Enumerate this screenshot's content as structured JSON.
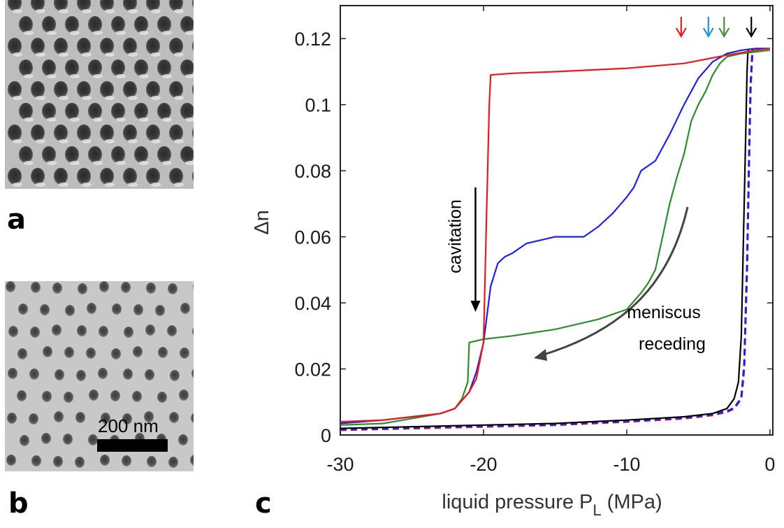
{
  "panels": {
    "a": "a",
    "b": "b",
    "c": "c"
  },
  "scale_bar": {
    "label": "200 nm"
  },
  "colors": {
    "red": "#e8191c",
    "blue": "#1f21e0",
    "green": "#2e8b2e",
    "black": "#000000",
    "arrow_blue": "#1f8fd6",
    "arrow_green": "#4f8a3a",
    "meniscus_arrow": "#444444"
  },
  "chart_data": {
    "type": "line",
    "xlabel": "liquid pressure P_L  (MPa)",
    "ylabel": "Δn",
    "xlim": [
      -30,
      0.2
    ],
    "ylim": [
      0,
      0.13
    ],
    "x_ticks": [
      -30,
      -20,
      -10,
      0
    ],
    "x_tick_labels": [
      "-30",
      "-20",
      "-10",
      "0"
    ],
    "y_ticks": [
      0,
      0.02,
      0.04,
      0.06,
      0.08,
      0.1,
      0.12
    ],
    "y_tick_labels": [
      "0",
      "0.02",
      "0.04",
      "0.06",
      "0.08",
      "0.1",
      "0.12"
    ],
    "grid": false,
    "annotations": [
      {
        "text": "cavitation",
        "x": -21,
        "y": 0.05,
        "arrow": "down"
      },
      {
        "text": "meniscus",
        "x": -6,
        "y": 0.04
      },
      {
        "text": "receding",
        "x": -6,
        "y": 0.029
      }
    ],
    "series": [
      {
        "color": "red",
        "style": "solid",
        "x": [
          -30,
          -27,
          -25,
          -23,
          -22,
          -21.5,
          -21,
          -20.5,
          -20,
          -19.8,
          -19.6,
          -19.5,
          -18,
          -15,
          -10,
          -6,
          -3,
          -1,
          0
        ],
        "y": [
          0.004,
          0.0045,
          0.0055,
          0.0065,
          0.008,
          0.0105,
          0.013,
          0.017,
          0.028,
          0.065,
          0.1,
          0.109,
          0.1095,
          0.11,
          0.111,
          0.1125,
          0.115,
          0.1165,
          0.117
        ]
      },
      {
        "color": "blue",
        "style": "solid",
        "x": [
          -30,
          -27,
          -25,
          -23,
          -22,
          -21.5,
          -21,
          -20.5,
          -20,
          -19.5,
          -19,
          -18.5,
          -18,
          -17,
          -16,
          -15,
          -14,
          -13,
          -12,
          -11,
          -10,
          -9.5,
          -9,
          -8,
          -7,
          -6,
          -5,
          -4,
          -3,
          -2,
          -1,
          0
        ],
        "y": [
          0.0035,
          0.0045,
          0.0055,
          0.0065,
          0.008,
          0.0105,
          0.013,
          0.019,
          0.028,
          0.045,
          0.052,
          0.054,
          0.055,
          0.058,
          0.059,
          0.06,
          0.06,
          0.06,
          0.063,
          0.067,
          0.072,
          0.075,
          0.08,
          0.083,
          0.091,
          0.1,
          0.108,
          0.113,
          0.1155,
          0.1165,
          0.117,
          0.117
        ]
      },
      {
        "color": "green",
        "style": "solid",
        "x": [
          -30,
          -27,
          -25,
          -23,
          -22,
          -21.5,
          -21.1,
          -21,
          -20,
          -18,
          -15,
          -12,
          -10,
          -9,
          -8.5,
          -8,
          -7.5,
          -7,
          -6.5,
          -6,
          -5.5,
          -5,
          -4.5,
          -4,
          -3.5,
          -3,
          -2,
          -1,
          0
        ],
        "y": [
          0.003,
          0.0035,
          0.005,
          0.0065,
          0.008,
          0.011,
          0.016,
          0.028,
          0.029,
          0.03,
          0.032,
          0.035,
          0.038,
          0.043,
          0.046,
          0.05,
          0.06,
          0.07,
          0.078,
          0.085,
          0.095,
          0.1,
          0.104,
          0.109,
          0.1125,
          0.1145,
          0.1155,
          0.116,
          0.1165
        ]
      },
      {
        "color": "black",
        "style": "solid",
        "x": [
          -30,
          -25,
          -20,
          -15,
          -10,
          -6,
          -4,
          -3,
          -2.5,
          -2.2,
          -2.0,
          -1.85,
          -1.7,
          -1.6,
          -1.55,
          -1.5
        ],
        "y": [
          0.002,
          0.0025,
          0.003,
          0.0035,
          0.0045,
          0.0055,
          0.0065,
          0.008,
          0.011,
          0.016,
          0.03,
          0.06,
          0.09,
          0.11,
          0.115,
          0.117
        ]
      },
      {
        "color": "red",
        "style": "dashed",
        "x": [
          -30,
          -25,
          -20,
          -15,
          -10,
          -6,
          -4,
          -3,
          -2.5,
          -2.0,
          -1.8,
          -1.6,
          -1.45,
          -1.35,
          -1.25,
          -1.2
        ],
        "y": [
          0.0015,
          0.002,
          0.0025,
          0.003,
          0.004,
          0.005,
          0.006,
          0.007,
          0.008,
          0.011,
          0.02,
          0.05,
          0.085,
          0.105,
          0.114,
          0.117
        ]
      },
      {
        "color": "blue",
        "style": "dashed",
        "x": [
          -30,
          -25,
          -20,
          -15,
          -10,
          -6,
          -4,
          -3,
          -2.5,
          -2.0,
          -1.8,
          -1.6,
          -1.45,
          -1.35,
          -1.25,
          -1.2
        ],
        "y": [
          0.0017,
          0.0022,
          0.0027,
          0.0032,
          0.0042,
          0.0052,
          0.0062,
          0.0072,
          0.0082,
          0.0112,
          0.021,
          0.051,
          0.086,
          0.106,
          0.1145,
          0.117
        ]
      }
    ],
    "release_arrows": [
      {
        "color": "red",
        "x": -6.2
      },
      {
        "color": "arrow_blue",
        "x": -4.3
      },
      {
        "color": "arrow_green",
        "x": -3.2
      },
      {
        "color": "black",
        "x": -1.3
      }
    ]
  }
}
